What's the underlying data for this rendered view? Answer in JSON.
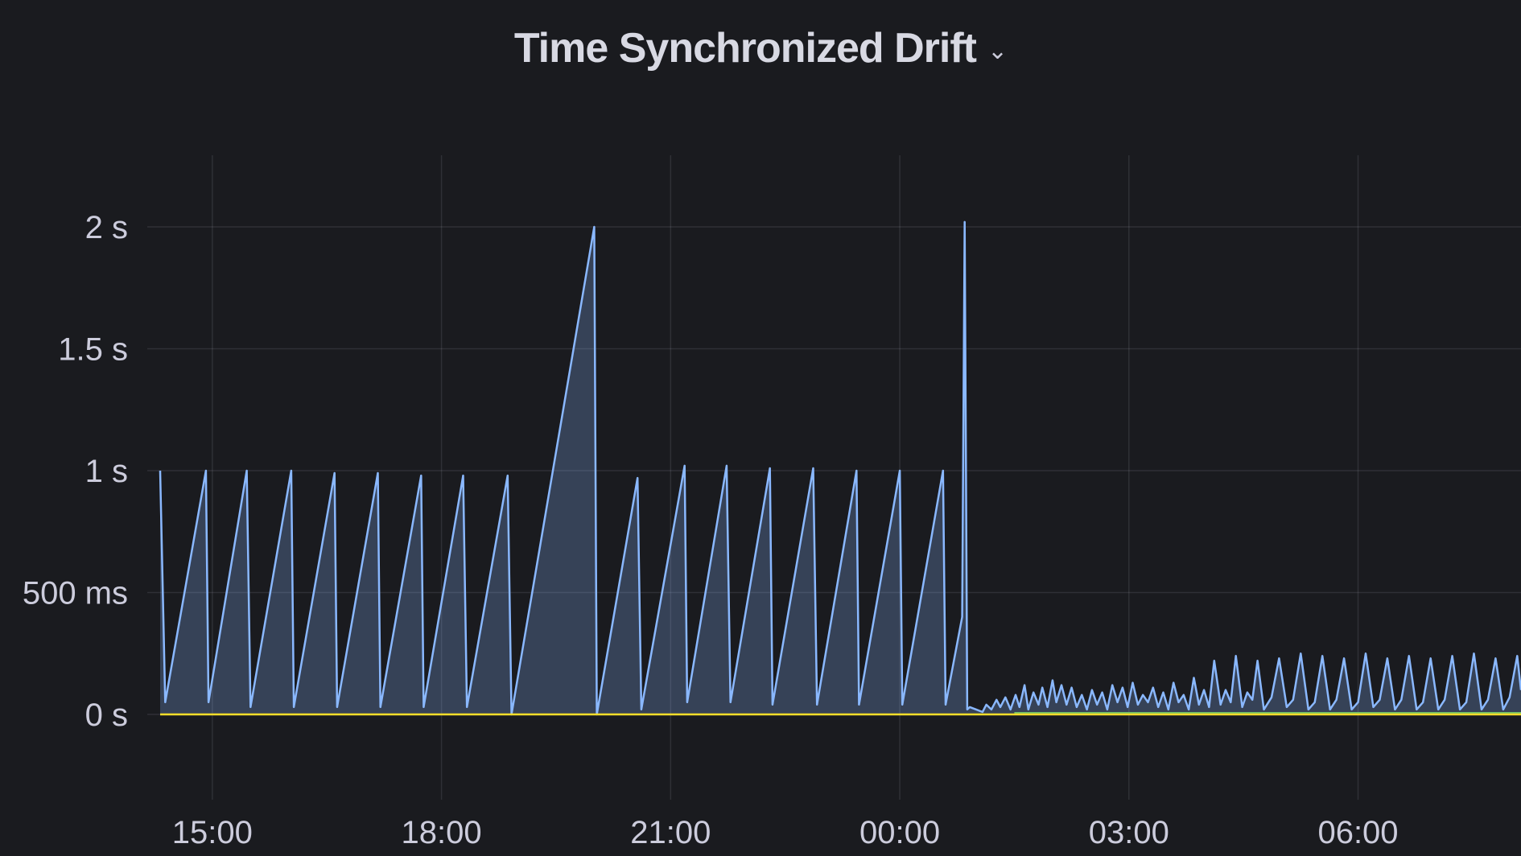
{
  "panel": {
    "title": "Time Synchronized Drift",
    "menu_icon": "chevron-down-icon"
  },
  "chart_data": {
    "type": "area",
    "title": "Time Synchronized Drift",
    "xlabel": "",
    "ylabel": "",
    "x_range": [
      "14:19",
      "08:08"
    ],
    "ylim": [
      -0.4,
      2.3
    ],
    "grid": true,
    "legend": "none",
    "y_ticks": [
      {
        "v": 0,
        "label": "0 s"
      },
      {
        "v": 0.5,
        "label": "500 ms"
      },
      {
        "v": 1,
        "label": "1 s"
      },
      {
        "v": 1.5,
        "label": "1.5 s"
      },
      {
        "v": 2,
        "label": "2 s"
      }
    ],
    "x_ticks": [
      "15:00",
      "18:00",
      "21:00",
      "00:00",
      "03:00",
      "06:00"
    ],
    "series": [
      {
        "color": "#8ab8ff",
        "fill": true,
        "points": [
          [
            "14:19",
            1.0
          ],
          [
            "14:23",
            0.05
          ],
          [
            "14:55",
            1.0
          ],
          [
            "14:57",
            0.05
          ],
          [
            "15:27",
            1.0
          ],
          [
            "15:30",
            0.03
          ],
          [
            "16:02",
            1.0
          ],
          [
            "16:04",
            0.03
          ],
          [
            "16:36",
            0.99
          ],
          [
            "16:38",
            0.03
          ],
          [
            "17:10",
            0.99
          ],
          [
            "17:12",
            0.03
          ],
          [
            "17:44",
            0.98
          ],
          [
            "17:46",
            0.03
          ],
          [
            "18:17",
            0.98
          ],
          [
            "18:20",
            0.03
          ],
          [
            "18:52",
            0.98
          ],
          [
            "18:55",
            0.0
          ],
          [
            "20:00",
            2.0
          ],
          [
            "20:02",
            0.0
          ],
          [
            "20:34",
            0.97
          ],
          [
            "20:37",
            0.02
          ],
          [
            "21:11",
            1.02
          ],
          [
            "21:13",
            0.05
          ],
          [
            "21:44",
            1.02
          ],
          [
            "21:47",
            0.05
          ],
          [
            "22:18",
            1.01
          ],
          [
            "22:20",
            0.04
          ],
          [
            "22:52",
            1.01
          ],
          [
            "22:55",
            0.04
          ],
          [
            "23:26",
            1.0
          ],
          [
            "23:28",
            0.04
          ],
          [
            "00:00",
            1.0
          ],
          [
            "00:02",
            0.04
          ],
          [
            "00:34",
            1.0
          ],
          [
            "00:36",
            0.04
          ],
          [
            "00:49",
            0.4
          ],
          [
            "00:51",
            2.02
          ],
          [
            "00:53",
            0.02
          ],
          [
            "00:55",
            0.03
          ],
          [
            "01:00",
            0.02
          ],
          [
            "01:05",
            0.01
          ],
          [
            "01:08",
            0.04
          ],
          [
            "01:12",
            0.02
          ],
          [
            "01:16",
            0.06
          ],
          [
            "01:19",
            0.03
          ],
          [
            "01:23",
            0.07
          ],
          [
            "01:27",
            0.02
          ],
          [
            "01:31",
            0.08
          ],
          [
            "01:34",
            0.03
          ],
          [
            "01:38",
            0.12
          ],
          [
            "01:41",
            0.02
          ],
          [
            "01:45",
            0.09
          ],
          [
            "01:49",
            0.04
          ],
          [
            "01:52",
            0.11
          ],
          [
            "01:56",
            0.03
          ],
          [
            "02:00",
            0.14
          ],
          [
            "02:03",
            0.05
          ],
          [
            "02:07",
            0.12
          ],
          [
            "02:11",
            0.04
          ],
          [
            "02:15",
            0.11
          ],
          [
            "02:19",
            0.03
          ],
          [
            "02:23",
            0.08
          ],
          [
            "02:27",
            0.02
          ],
          [
            "02:31",
            0.1
          ],
          [
            "02:35",
            0.04
          ],
          [
            "02:39",
            0.09
          ],
          [
            "02:43",
            0.02
          ],
          [
            "02:47",
            0.12
          ],
          [
            "02:51",
            0.05
          ],
          [
            "02:55",
            0.11
          ],
          [
            "02:59",
            0.03
          ],
          [
            "03:03",
            0.13
          ],
          [
            "03:07",
            0.04
          ],
          [
            "03:11",
            0.08
          ],
          [
            "03:15",
            0.05
          ],
          [
            "03:19",
            0.11
          ],
          [
            "03:23",
            0.03
          ],
          [
            "03:27",
            0.09
          ],
          [
            "03:31",
            0.02
          ],
          [
            "03:35",
            0.13
          ],
          [
            "03:39",
            0.05
          ],
          [
            "03:43",
            0.08
          ],
          [
            "03:47",
            0.02
          ],
          [
            "03:51",
            0.15
          ],
          [
            "03:55",
            0.04
          ],
          [
            "03:59",
            0.1
          ],
          [
            "04:03",
            0.03
          ],
          [
            "04:07",
            0.22
          ],
          [
            "04:12",
            0.04
          ],
          [
            "04:16",
            0.1
          ],
          [
            "04:20",
            0.05
          ],
          [
            "04:24",
            0.24
          ],
          [
            "04:29",
            0.03
          ],
          [
            "04:33",
            0.09
          ],
          [
            "04:37",
            0.06
          ],
          [
            "04:41",
            0.22
          ],
          [
            "04:46",
            0.02
          ],
          [
            "04:52",
            0.07
          ],
          [
            "04:58",
            0.23
          ],
          [
            "05:04",
            0.03
          ],
          [
            "05:09",
            0.06
          ],
          [
            "05:15",
            0.25
          ],
          [
            "05:21",
            0.02
          ],
          [
            "05:26",
            0.05
          ],
          [
            "05:32",
            0.24
          ],
          [
            "05:38",
            0.02
          ],
          [
            "05:43",
            0.06
          ],
          [
            "05:49",
            0.23
          ],
          [
            "05:55",
            0.02
          ],
          [
            "06:00",
            0.05
          ],
          [
            "06:06",
            0.25
          ],
          [
            "06:12",
            0.03
          ],
          [
            "06:17",
            0.06
          ],
          [
            "06:23",
            0.23
          ],
          [
            "06:29",
            0.02
          ],
          [
            "06:34",
            0.06
          ],
          [
            "06:40",
            0.24
          ],
          [
            "06:46",
            0.02
          ],
          [
            "06:51",
            0.05
          ],
          [
            "06:57",
            0.23
          ],
          [
            "07:03",
            0.02
          ],
          [
            "07:08",
            0.06
          ],
          [
            "07:14",
            0.24
          ],
          [
            "07:20",
            0.02
          ],
          [
            "07:25",
            0.05
          ],
          [
            "07:31",
            0.25
          ],
          [
            "07:37",
            0.02
          ],
          [
            "07:42",
            0.06
          ],
          [
            "07:48",
            0.23
          ],
          [
            "07:54",
            0.02
          ],
          [
            "07:59",
            0.07
          ],
          [
            "08:05",
            0.24
          ],
          [
            "08:08",
            0.1
          ]
        ]
      },
      {
        "color": "#73bf69",
        "fill": false,
        "points": [
          [
            "01:30",
            0.006
          ],
          [
            "08:08",
            0.006
          ]
        ]
      },
      {
        "color": "#fade2a",
        "fill": false,
        "points": [
          [
            "14:19",
            0.0
          ],
          [
            "08:08",
            0.0
          ]
        ]
      }
    ]
  }
}
